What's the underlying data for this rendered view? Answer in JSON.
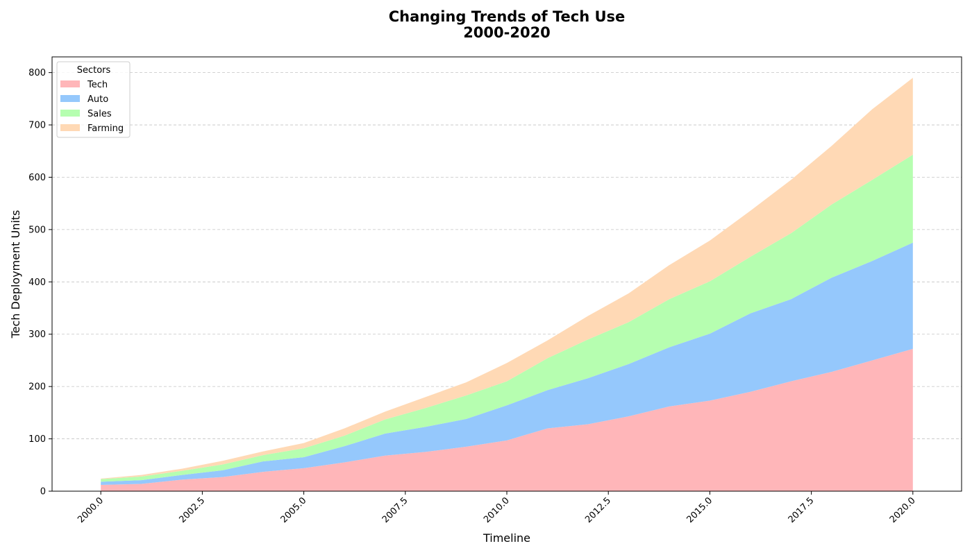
{
  "chart_data": {
    "type": "area",
    "stacked": true,
    "title_lines": [
      "Changing Trends of Tech Use",
      "2000-2020"
    ],
    "xlabel": "Timeline",
    "ylabel": "Tech Deployment Units",
    "xlim": [
      1998.8,
      2021.2
    ],
    "ylim": [
      0,
      830
    ],
    "x_ticks": [
      2000.0,
      2002.5,
      2005.0,
      2007.5,
      2010.0,
      2012.5,
      2015.0,
      2017.5,
      2020.0
    ],
    "x_tick_labels": [
      "2000.0",
      "2002.5",
      "2005.0",
      "2007.5",
      "2010.0",
      "2012.5",
      "2015.0",
      "2017.5",
      "2020.0"
    ],
    "y_ticks": [
      0,
      100,
      200,
      300,
      400,
      500,
      600,
      700,
      800
    ],
    "y_tick_labels": [
      "0",
      "100",
      "200",
      "300",
      "400",
      "500",
      "600",
      "700",
      "800"
    ],
    "grid": "y-dashed",
    "legend": {
      "title": "Sectors",
      "placement": "top-left"
    },
    "x": [
      2000,
      2001,
      2002,
      2003,
      2004,
      2005,
      2006,
      2007,
      2008,
      2009,
      2010,
      2011,
      2012,
      2013,
      2014,
      2015,
      2016,
      2017,
      2018,
      2019,
      2020
    ],
    "series": [
      {
        "name": "Tech",
        "color": "#ffb6b9",
        "values": [
          12,
          14,
          22,
          27,
          37,
          44,
          55,
          68,
          75,
          85,
          97,
          120,
          128,
          143,
          162,
          173,
          190,
          210,
          228,
          250,
          272
        ]
      },
      {
        "name": "Auto",
        "color": "#95c8fc",
        "values": [
          6,
          7,
          9,
          13,
          20,
          21,
          31,
          42,
          48,
          53,
          67,
          73,
          88,
          100,
          113,
          128,
          150,
          157,
          180,
          190,
          203
        ]
      },
      {
        "name": "Sales",
        "color": "#b6feb0",
        "values": [
          5,
          7,
          8,
          11,
          12,
          17,
          20,
          27,
          36,
          45,
          46,
          61,
          74,
          80,
          92,
          100,
          108,
          126,
          140,
          155,
          168
        ]
      },
      {
        "name": "Farming",
        "color": "#ffd9b5",
        "values": [
          1,
          3,
          4,
          7,
          7,
          10,
          14,
          15,
          21,
          25,
          35,
          34,
          45,
          55,
          65,
          78,
          88,
          102,
          112,
          135,
          147
        ]
      }
    ]
  }
}
